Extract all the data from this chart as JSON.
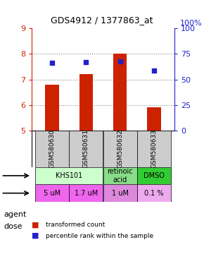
{
  "title": "GDS4912 / 1377863_at",
  "samples": [
    "GSM580630",
    "GSM580631",
    "GSM580632",
    "GSM580633"
  ],
  "bar_values": [
    6.8,
    7.2,
    8.0,
    5.9
  ],
  "percentile_values": [
    7.65,
    7.68,
    7.72,
    7.35
  ],
  "bar_color": "#cc2200",
  "dot_color": "#2222cc",
  "ylim": [
    5,
    9
  ],
  "yticks_left": [
    5,
    6,
    7,
    8,
    9
  ],
  "yticks_right": [
    0,
    25,
    50,
    75,
    100
  ],
  "ylabel_left_color": "#cc2200",
  "ylabel_right_color": "#2222cc",
  "agent_spans": [
    {
      "c0": 0,
      "c1": 1,
      "label": "KHS101",
      "color": "#ccffcc"
    },
    {
      "c0": 2,
      "c1": 2,
      "label": "retinoic\nacid",
      "color": "#88dd88"
    },
    {
      "c0": 3,
      "c1": 3,
      "label": "DMSO",
      "color": "#33cc33"
    }
  ],
  "dose_row": [
    "5 uM",
    "1.7 uM",
    "1 uM",
    "0.1 %"
  ],
  "dose_colors": [
    "#ee66ee",
    "#ee66ee",
    "#dd88dd",
    "#eeaaee"
  ],
  "sample_bg": "#cccccc",
  "bar_width": 0.4,
  "x_positions": [
    0,
    1,
    2,
    3
  ]
}
